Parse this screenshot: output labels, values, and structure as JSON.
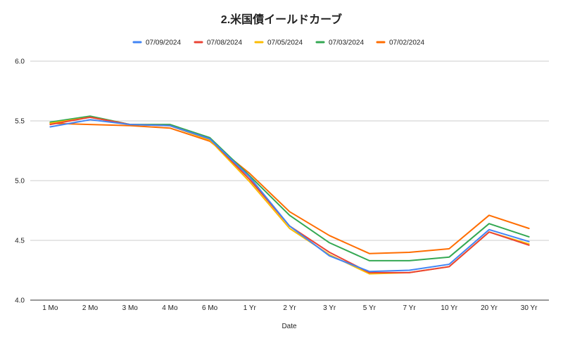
{
  "chart_data": {
    "type": "line",
    "title": "2.米国債イールドカーブ",
    "xlabel": "Date",
    "ylabel": "",
    "ylim": [
      4.0,
      6.0
    ],
    "yticks": [
      "4.0",
      "4.5",
      "5.0",
      "5.5",
      "6.0"
    ],
    "grid": true,
    "legend_position": "top",
    "categories": [
      "1 Mo",
      "2 Mo",
      "3 Mo",
      "4 Mo",
      "6 Mo",
      "1 Yr",
      "2 Yr",
      "3 Yr",
      "5 Yr",
      "7 Yr",
      "10 Yr",
      "20 Yr",
      "30 Yr"
    ],
    "series": [
      {
        "name": "07/09/2024",
        "color": "#4285f4",
        "values": [
          5.45,
          5.51,
          5.47,
          5.46,
          5.35,
          5.03,
          4.62,
          4.37,
          4.24,
          4.25,
          4.3,
          4.59,
          4.49
        ]
      },
      {
        "name": "07/08/2024",
        "color": "#ea4335",
        "values": [
          5.47,
          5.53,
          5.47,
          5.46,
          5.35,
          5.01,
          4.62,
          4.4,
          4.23,
          4.23,
          4.28,
          4.57,
          4.46
        ]
      },
      {
        "name": "07/05/2024",
        "color": "#fbbc04",
        "values": [
          5.48,
          5.53,
          5.47,
          5.46,
          5.34,
          4.99,
          4.6,
          4.38,
          4.22,
          4.23,
          4.28,
          4.57,
          4.47
        ]
      },
      {
        "name": "07/03/2024",
        "color": "#34a853",
        "values": [
          5.49,
          5.54,
          5.47,
          5.47,
          5.36,
          5.04,
          4.71,
          4.48,
          4.33,
          4.33,
          4.36,
          4.64,
          4.53
        ]
      },
      {
        "name": "07/02/2024",
        "color": "#ff6d01",
        "values": [
          5.48,
          5.47,
          5.46,
          5.44,
          5.33,
          5.06,
          4.74,
          4.54,
          4.39,
          4.4,
          4.43,
          4.71,
          4.6
        ]
      }
    ]
  }
}
